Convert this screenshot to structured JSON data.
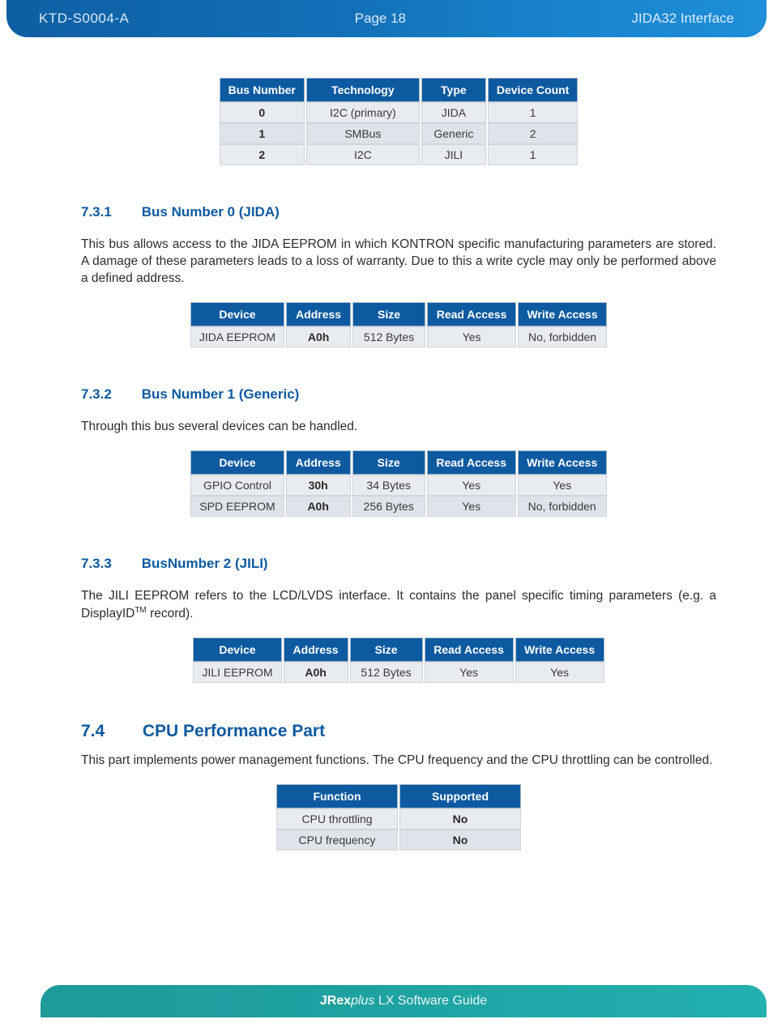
{
  "header": {
    "doc_id": "KTD-S0004-A",
    "page_label": "Page 18",
    "title": "JIDA32 Interface"
  },
  "colors": {
    "header_blue": "#0d5aa0",
    "header_gradient_start": "#0e5fa3",
    "header_gradient_end": "#1e8fd8",
    "row_bg": "#e8ebef",
    "row_alt_bg": "#dfe4ea",
    "footer_teal_start": "#1d9a99",
    "footer_teal_end": "#23b0ae",
    "text": "#2d2d2d"
  },
  "table1": {
    "columns": [
      "Bus Number",
      "Technology",
      "Type",
      "Device Count"
    ],
    "rows": [
      [
        "0",
        "I2C (primary)",
        "JIDA",
        "1"
      ],
      [
        "1",
        "SMBus",
        "Generic",
        "2"
      ],
      [
        "2",
        "I2C",
        "JILI",
        "1"
      ]
    ],
    "bold_col_index": 0
  },
  "sec731": {
    "num": "7.3.1",
    "title": "Bus Number 0 (JIDA)",
    "body": "This bus allows access to the JIDA EEPROM in which KONTRON specific manufacturing parameters are stored. A damage of these parameters leads to a loss of warranty. Due to this a write cycle may only be performed above a defined address."
  },
  "table2": {
    "columns": [
      "Device",
      "Address",
      "Size",
      "Read Access",
      "Write Access"
    ],
    "rows": [
      [
        "JIDA EEPROM",
        "A0h",
        "512 Bytes",
        "Yes",
        "No, forbidden"
      ]
    ],
    "bold_col_index": 1
  },
  "sec732": {
    "num": "7.3.2",
    "title": "Bus Number 1 (Generic)",
    "body": "Through this bus several devices can be handled."
  },
  "table3": {
    "columns": [
      "Device",
      "Address",
      "Size",
      "Read Access",
      "Write Access"
    ],
    "rows": [
      [
        "GPIO Control",
        "30h",
        "34 Bytes",
        "Yes",
        "Yes"
      ],
      [
        "SPD EEPROM",
        "A0h",
        "256 Bytes",
        "Yes",
        "No, forbidden"
      ]
    ],
    "bold_col_index": 1
  },
  "sec733": {
    "num": "7.3.3",
    "title": "BusNumber 2 (JILI)",
    "body_prefix": "The JILI EEPROM refers to the LCD/LVDS interface. It contains the panel specific timing parameters (e.g. a DisplayID",
    "body_suffix": " record)."
  },
  "table4": {
    "columns": [
      "Device",
      "Address",
      "Size",
      "Read Access",
      "Write Access"
    ],
    "rows": [
      [
        "JILI EEPROM",
        "A0h",
        "512 Bytes",
        "Yes",
        "Yes"
      ]
    ],
    "bold_col_index": 1
  },
  "sec74": {
    "num": "7.4",
    "title": "CPU Performance Part",
    "body": "This part implements power management functions. The CPU frequency and the CPU throttling can be controlled."
  },
  "table5": {
    "columns": [
      "Function",
      "Supported"
    ],
    "rows": [
      [
        "CPU throttling",
        "No"
      ],
      [
        "CPU frequency",
        "No"
      ]
    ],
    "bold_col_index": 1
  },
  "footer": {
    "brand_bold": "JRex",
    "brand_italic": "plus",
    "brand_rest": " LX",
    "suffix": " Software Guide"
  }
}
